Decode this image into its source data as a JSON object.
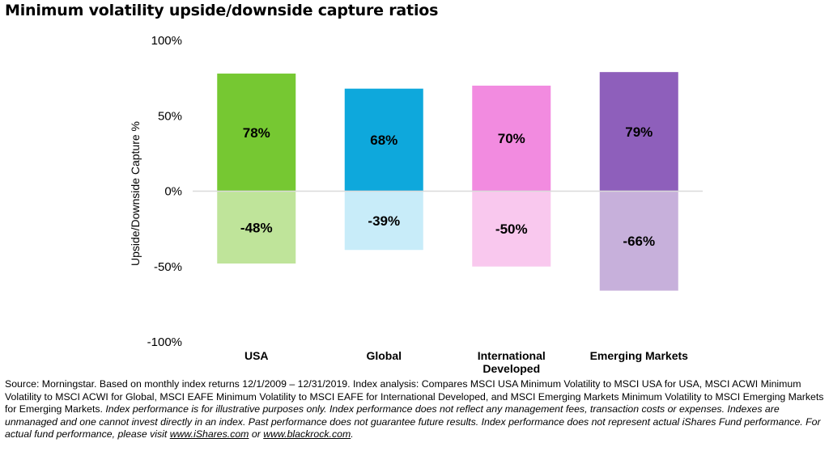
{
  "title": "Minimum volatility upside/downside capture ratios",
  "chart_data": {
    "type": "bar",
    "categories": [
      "USA",
      "Global",
      "International Developed",
      "Emerging Markets"
    ],
    "series": [
      {
        "values": [
          78,
          68,
          70,
          79
        ],
        "colors": [
          "#76c832",
          "#0ea8dc",
          "#f28be0",
          "#8e5fbb"
        ]
      },
      {
        "values": [
          -48,
          -39,
          -50,
          -66
        ],
        "colors": [
          "#bfe49a",
          "#c8ecf9",
          "#f9c8ee",
          "#c7b0db"
        ]
      }
    ],
    "data_labels": {
      "upside": [
        "78%",
        "68%",
        "70%",
        "79%"
      ],
      "downside": [
        "-48%",
        "-39%",
        "-50%",
        "-66%"
      ]
    },
    "ylabel": "Upside/Downside  Capture  %",
    "ylim": [
      -100,
      100
    ],
    "yticks": [
      100,
      50,
      0,
      -50,
      -100
    ],
    "ytick_labels": [
      "100%",
      "50%",
      "0%",
      "-50%",
      "-100%"
    ],
    "grid": false,
    "legend": "none"
  },
  "footnote": {
    "part1": "Source: Morningstar. Based on monthly index returns 12/1/2009 – 12/31/2019. Index analysis: Compares MSCI USA Minimum Volatility to MSCI USA for USA, MSCI ACWI Minimum Volatility to MSCI ACWI for Global, MSCI EAFE Minimum Volatility to MSCI EAFE for International Developed, and MSCI Emerging Markets Minimum Volatility to MSCI Emerging Markets for Emerging Markets. ",
    "part2": "Index performance is for illustrative purposes only. Index performance does not reflect any management fees, transaction costs or expenses. Indexes are unmanaged and one cannot invest directly in an index. Past performance does not guarantee future results. Index performance does not represent actual iShares Fund performance. For actual fund performance, please visit ",
    "link1": "www.iShares.com",
    "or": " or ",
    "link2": "www.blackrock.com",
    "end": "."
  }
}
